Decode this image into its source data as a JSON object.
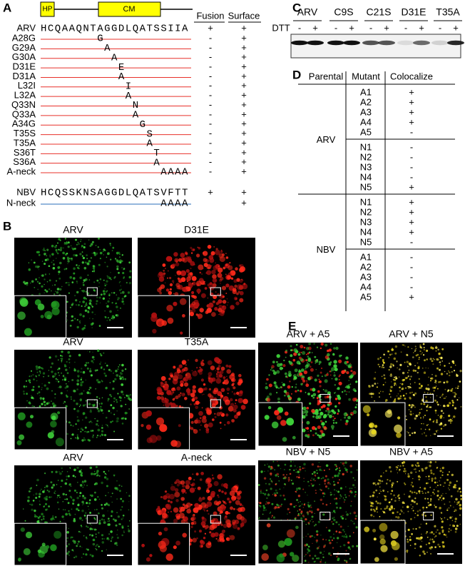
{
  "panel_a": {
    "label": "A",
    "domains": [
      "HP",
      "CM"
    ],
    "headers": [
      "Fusion",
      "Surface"
    ],
    "parental": {
      "name": "ARV",
      "sequence": "HCQAAQNTAGGDLQATSSIIA",
      "fusion": "+",
      "surface": "+"
    },
    "mutants": [
      {
        "name": "A28G",
        "mutation": "G",
        "fusion": "-",
        "surface": "+"
      },
      {
        "name": "G29A",
        "mutation": "A",
        "fusion": "-",
        "surface": "+"
      },
      {
        "name": "G30A",
        "mutation": "A",
        "fusion": "-",
        "surface": "+"
      },
      {
        "name": "D31E",
        "mutation": "E",
        "fusion": "-",
        "surface": "+"
      },
      {
        "name": "D31A",
        "mutation": "A",
        "fusion": "-",
        "surface": "+"
      },
      {
        "name": "L32I",
        "mutation": "I",
        "fusion": "-",
        "surface": "+"
      },
      {
        "name": "L32A",
        "mutation": "A",
        "fusion": "-",
        "surface": "+"
      },
      {
        "name": "Q33N",
        "mutation": "N",
        "fusion": "-",
        "surface": "+"
      },
      {
        "name": "Q33A",
        "mutation": "A",
        "fusion": "-",
        "surface": "+"
      },
      {
        "name": "A34G",
        "mutation": "G",
        "fusion": "-",
        "surface": "+"
      },
      {
        "name": "T35S",
        "mutation": "S",
        "fusion": "-",
        "surface": "+"
      },
      {
        "name": "T35A",
        "mutation": "A",
        "fusion": "-",
        "surface": "+"
      },
      {
        "name": "S36T",
        "mutation": "T",
        "fusion": "-",
        "surface": "+"
      },
      {
        "name": "S36A",
        "mutation": "A",
        "fusion": "-",
        "surface": "+"
      },
      {
        "name": "A-neck",
        "mutation": "AAAA",
        "fusion": "-",
        "surface": "+"
      }
    ],
    "nbv": {
      "name": "NBV",
      "sequence": "HCQSSKNSAGGDLQATSVFTT",
      "fusion": "+",
      "surface": "+"
    },
    "nbv_mutant": {
      "name": "N-neck",
      "mutation": "AAAA",
      "surface": "+"
    }
  },
  "panel_b": {
    "label": "B",
    "images": [
      "ARV",
      "D31E",
      "ARV",
      "T35A",
      "ARV",
      "A-neck"
    ]
  },
  "panel_c": {
    "label": "C",
    "lanes": [
      "ARV",
      "C9S",
      "C21S",
      "D31E",
      "T35A"
    ],
    "treatment": "DTT",
    "conditions": [
      "-",
      "+"
    ]
  },
  "panel_d": {
    "label": "D",
    "headers": [
      "Parental",
      "Mutant",
      "Colocalize"
    ],
    "groups": [
      {
        "parental": "ARV",
        "subgroups": [
          {
            "mutants": [
              "A1",
              "A2",
              "A3",
              "A4",
              "A5"
            ],
            "colocalize": [
              "+",
              "+",
              "+",
              "+",
              "-"
            ]
          },
          {
            "mutants": [
              "N1",
              "N2",
              "N3",
              "N4",
              "N5"
            ],
            "colocalize": [
              "-",
              "-",
              "-",
              "-",
              "+"
            ]
          }
        ]
      },
      {
        "parental": "NBV",
        "subgroups": [
          {
            "mutants": [
              "N1",
              "N2",
              "N3",
              "N4",
              "N5"
            ],
            "colocalize": [
              "+",
              "+",
              "+",
              "+",
              "-"
            ]
          },
          {
            "mutants": [
              "A1",
              "A2",
              "A3",
              "A4",
              "A5"
            ],
            "colocalize": [
              "-",
              "-",
              "-",
              "-",
              "+"
            ]
          }
        ]
      }
    ]
  },
  "panel_e": {
    "label": "E",
    "images": [
      "ARV + A5",
      "ARV + N5",
      "NBV + N5",
      "NBV + A5"
    ]
  }
}
